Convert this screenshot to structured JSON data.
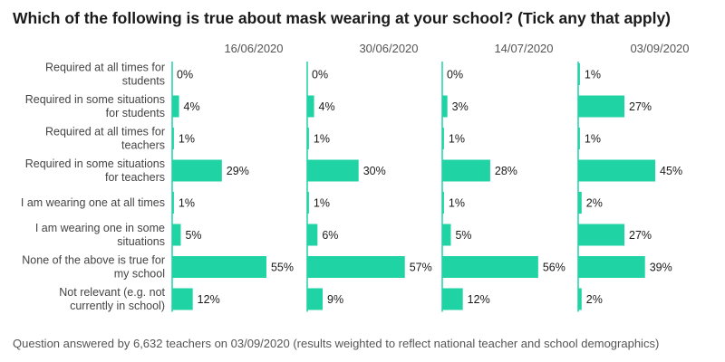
{
  "title": "Which of the following is true about mask wearing at your school? (Tick any that apply)",
  "footnote": "Question answered by 6,632 teachers on 03/09/2020 (results weighted to reflect national teacher and school demographics)",
  "colors": {
    "bar": "#1fd3a5",
    "baseline": "#1fd3a5"
  },
  "chart_data": {
    "type": "bar",
    "orientation": "horizontal",
    "value_suffix": "%",
    "categories": [
      [
        "Required at all times for",
        "students"
      ],
      [
        "Required in some situations",
        "for students"
      ],
      [
        "Required at all times for",
        "teachers"
      ],
      [
        "Required in some situations",
        "for teachers"
      ],
      [
        "I am wearing one at all times"
      ],
      [
        "I am wearing one in some",
        "situations"
      ],
      [
        "None of the above is true for",
        "my school"
      ],
      [
        "Not relevant (e.g. not",
        "currently in school)"
      ]
    ],
    "series": [
      {
        "name": "16/06/2020",
        "values": [
          0,
          4,
          1,
          29,
          1,
          5,
          55,
          12
        ]
      },
      {
        "name": "30/06/2020",
        "values": [
          0,
          4,
          1,
          30,
          1,
          6,
          57,
          9
        ]
      },
      {
        "name": "14/07/2020",
        "values": [
          0,
          3,
          1,
          28,
          1,
          5,
          56,
          12
        ]
      },
      {
        "name": "03/09/2020",
        "values": [
          1,
          27,
          1,
          45,
          2,
          27,
          39,
          2
        ]
      }
    ]
  }
}
